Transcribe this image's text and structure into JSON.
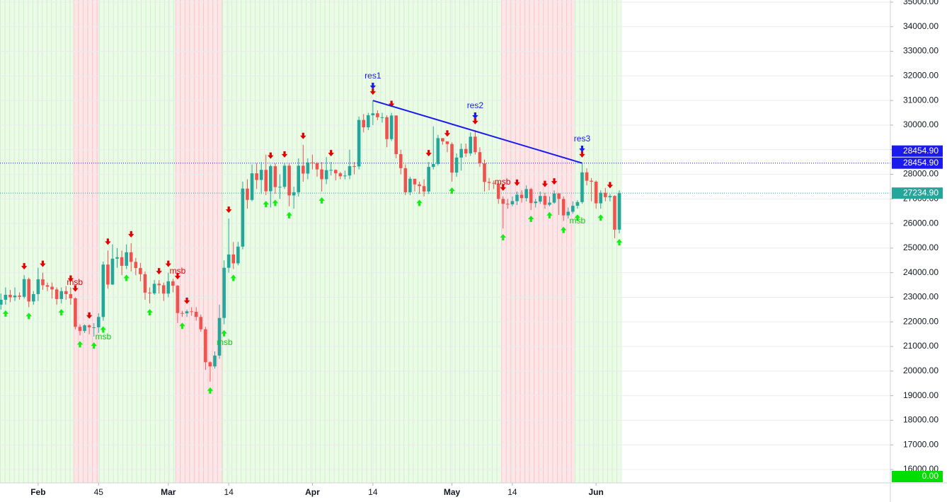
{
  "chart_data": {
    "type": "candlestick",
    "x": [
      24,
      25,
      26,
      27,
      28,
      29,
      30,
      31,
      32,
      33,
      34,
      35,
      36,
      37,
      38,
      39,
      40,
      41,
      42,
      43,
      44,
      45,
      46,
      47,
      48,
      49,
      50,
      51,
      52,
      53,
      54,
      55,
      56,
      57,
      58,
      59,
      60,
      61,
      62,
      63,
      64,
      65,
      66,
      67,
      68,
      69,
      70,
      71,
      72,
      73,
      74,
      75,
      76,
      77,
      78,
      79,
      80,
      81,
      82,
      83,
      84,
      85,
      86,
      87,
      88,
      89,
      90,
      91,
      92,
      93,
      94,
      95,
      96,
      97,
      98,
      99,
      100,
      101,
      102,
      103,
      104,
      105,
      106,
      107,
      108,
      109,
      110,
      111,
      112,
      113,
      114,
      115,
      116,
      117,
      118,
      119,
      120,
      121,
      122,
      123,
      124,
      125,
      126,
      127,
      128,
      129,
      130,
      131,
      132,
      133,
      134,
      135,
      136,
      137,
      138,
      139,
      140,
      141,
      142,
      143,
      144,
      145,
      146,
      147,
      148,
      149,
      150,
      151,
      152,
      153,
      154,
      155,
      156,
      157
    ],
    "open": [
      22700,
      22900,
      23100,
      23000,
      23070,
      23020,
      23740,
      22830,
      23130,
      23730,
      23490,
      23430,
      23320,
      22930,
      23250,
      23130,
      22960,
      21800,
      21630,
      21860,
      21780,
      21780,
      22200,
      24330,
      23520,
      24570,
      24630,
      24280,
      24830,
      24440,
      24190,
      23940,
      23190,
      23160,
      23550,
      23490,
      23150,
      23650,
      23470,
      22360,
      22350,
      22430,
      22410,
      22200,
      21700,
      20360,
      20190,
      20630,
      22160,
      24200,
      24740,
      24380,
      25060,
      27420,
      26960,
      28040,
      27770,
      28180,
      27310,
      28330,
      27480,
      27490,
      28350,
      27140,
      27270,
      28350,
      28030,
      28480,
      28450,
      28200,
      27800,
      28170,
      28180,
      28040,
      27920,
      27950,
      28330,
      28320,
      30210,
      29910,
      30400,
      30480,
      30320,
      30320,
      29430,
      30390,
      28820,
      28250,
      27270,
      27820,
      27590,
      27520,
      27300,
      28300,
      28420,
      29470,
      29340,
      29230,
      28070,
      28680,
      29030,
      28850,
      29530,
      28900,
      28450,
      27690,
      27650,
      27620,
      27000,
      26800,
      26780,
      26910,
      27170,
      27030,
      27400,
      26830,
      26890,
      27120,
      26760,
      26850,
      27220,
      27000,
      26330,
      26480,
      26720,
      26870,
      28080,
      27740,
      27700,
      26820,
      27250,
      27070,
      27120,
      25750
    ],
    "high": [
      23150,
      23400,
      23300,
      23400,
      23200,
      23900,
      23800,
      23250,
      24200,
      24000,
      23600,
      23600,
      23400,
      23400,
      23450,
      23400,
      23000,
      21900,
      21900,
      21900,
      21950,
      22350,
      24450,
      24900,
      25150,
      25000,
      24900,
      25150,
      25200,
      24600,
      24400,
      24050,
      23400,
      23700,
      23700,
      23600,
      24000,
      23750,
      23500,
      22450,
      22500,
      22600,
      22600,
      22300,
      21800,
      20400,
      20800,
      22700,
      24500,
      26200,
      25250,
      25250,
      27700,
      27800,
      28400,
      28450,
      28500,
      28800,
      28400,
      28450,
      28000,
      28450,
      28450,
      27500,
      28650,
      29200,
      28650,
      28800,
      28500,
      28500,
      28700,
      28500,
      28200,
      28100,
      28150,
      29000,
      28500,
      30350,
      30450,
      30500,
      31000,
      30600,
      30500,
      30400,
      30500,
      30400,
      29000,
      28400,
      27900,
      27800,
      27700,
      27800,
      28500,
      29950,
      29600,
      29450,
      29300,
      29300,
      28850,
      29250,
      29250,
      29700,
      29800,
      29100,
      28600,
      27850,
      27750,
      27700,
      27100,
      27000,
      27100,
      27300,
      27350,
      27550,
      27450,
      27000,
      27300,
      27250,
      27100,
      27350,
      27250,
      27100,
      26650,
      26900,
      26950,
      28450,
      28250,
      27850,
      27750,
      27350,
      27450,
      27200,
      27150,
      27350
    ],
    "low": [
      22500,
      22700,
      22800,
      22850,
      22900,
      22950,
      22600,
      22700,
      22850,
      23300,
      23250,
      22950,
      22700,
      22750,
      22900,
      22700,
      21700,
      21450,
      21550,
      21500,
      21400,
      21550,
      22050,
      23350,
      23500,
      24200,
      23900,
      24150,
      24050,
      23900,
      23650,
      22900,
      22750,
      23100,
      23150,
      22850,
      23000,
      23200,
      21950,
      22200,
      22200,
      22250,
      22050,
      21600,
      20050,
      19570,
      20100,
      20500,
      21900,
      24000,
      24150,
      24300,
      24950,
      26600,
      26900,
      27400,
      27200,
      27150,
      26650,
      27200,
      27000,
      27400,
      26700,
      26600,
      27100,
      27700,
      27800,
      28200,
      27900,
      27300,
      27600,
      27950,
      27750,
      27800,
      27800,
      27800,
      28000,
      28200,
      29700,
      29800,
      30000,
      30200,
      30100,
      29100,
      29350,
      28650,
      28000,
      27150,
      27150,
      27300,
      27200,
      27100,
      27200,
      28200,
      28350,
      29200,
      28900,
      27700,
      27900,
      28150,
      28700,
      28750,
      28800,
      28300,
      27300,
      27350,
      27400,
      26800,
      25800,
      26600,
      26700,
      26750,
      26850,
      26900,
      26550,
      26650,
      26800,
      26600,
      26700,
      26800,
      26350,
      26100,
      26200,
      26400,
      26600,
      26800,
      27550,
      26900,
      26600,
      26600,
      26900,
      26900,
      25400,
      25600
    ],
    "close": [
      22900,
      23100,
      23000,
      23070,
      23020,
      23740,
      22830,
      23130,
      23730,
      23490,
      23430,
      23320,
      22930,
      23250,
      23130,
      22960,
      21800,
      21630,
      21860,
      21780,
      21780,
      22200,
      24330,
      23520,
      24570,
      24630,
      24280,
      24830,
      24440,
      24190,
      23940,
      23190,
      23160,
      23550,
      23490,
      23150,
      23650,
      23470,
      22360,
      22350,
      22430,
      22410,
      22200,
      21700,
      20360,
      20190,
      20630,
      22160,
      24200,
      24740,
      24380,
      25060,
      27420,
      26960,
      28040,
      27770,
      28180,
      27310,
      28330,
      27480,
      27490,
      28350,
      27140,
      27270,
      28350,
      28030,
      28480,
      28450,
      28200,
      27800,
      28170,
      28180,
      28040,
      27920,
      27950,
      28330,
      28320,
      30210,
      29910,
      30400,
      30480,
      30320,
      30320,
      29430,
      30390,
      28820,
      28250,
      27270,
      27820,
      27590,
      27520,
      27300,
      28300,
      28420,
      29470,
      29340,
      29230,
      28070,
      28680,
      29030,
      28850,
      29530,
      28900,
      28450,
      27690,
      27650,
      27620,
      27000,
      26800,
      26780,
      26910,
      27170,
      27030,
      27400,
      26830,
      26890,
      27120,
      26760,
      26850,
      27220,
      27000,
      26330,
      26480,
      26720,
      26870,
      28080,
      27740,
      27700,
      26820,
      27250,
      27070,
      27120,
      25750,
      27234.9
    ],
    "up_color": "#26a69a",
    "down_color": "#ef5350",
    "xlim": [
      23.8,
      215.3
    ],
    "xticks": [
      {
        "value": 32,
        "label": "Feb"
      },
      45,
      {
        "value": 60,
        "label": "Mar"
      },
      {
        "value": 73,
        "label": "14"
      },
      {
        "value": 91,
        "label": "Apr"
      },
      {
        "value": 104,
        "label": "14"
      },
      {
        "value": 121,
        "label": "May"
      },
      {
        "value": 134,
        "label": "14"
      },
      {
        "value": 152,
        "label": "Jun"
      }
    ],
    "ylim": [
      15454,
      35086
    ],
    "yticks": [
      {
        "value": 16000,
        "label": "16000.00"
      },
      {
        "value": 17000,
        "label": "17000.00"
      },
      {
        "value": 18000,
        "label": "18000.00"
      },
      {
        "value": 19000,
        "label": "19000.00"
      },
      {
        "value": 20000,
        "label": "20000.00"
      },
      {
        "value": 21000,
        "label": "21000.00"
      },
      {
        "value": 22000,
        "label": "22000.00"
      },
      {
        "value": 23000,
        "label": "23000.00"
      },
      {
        "value": 24000,
        "label": "24000.00"
      },
      {
        "value": 25000,
        "label": "25000.00"
      },
      {
        "value": 26000,
        "label": "26000.00"
      },
      {
        "value": 27000,
        "label": "27000.00"
      },
      {
        "value": 28000,
        "label": "28000.00"
      },
      {
        "value": 29000,
        "label": "29000.00"
      },
      {
        "value": 30000,
        "label": "30000.00"
      },
      {
        "value": 31000,
        "label": "31000.00"
      },
      {
        "value": 32000,
        "label": "32000.00"
      },
      {
        "value": 33000,
        "label": "33000.00"
      },
      {
        "value": 34000,
        "label": "34000.00"
      },
      {
        "value": 35000,
        "label": "35000.00"
      }
    ],
    "grid": true,
    "zones": [
      {
        "x": [
          23.8,
          39.6
        ],
        "fill": "#ebfbe8",
        "stripe": "#cdf3c6"
      },
      {
        "x": [
          39.6,
          45.1
        ],
        "fill": "#fde6e8",
        "stripe": "#f8c6ca"
      },
      {
        "x": [
          45.1,
          61.5
        ],
        "fill": "#ebfbe8",
        "stripe": "#cdf3c6"
      },
      {
        "x": [
          61.5,
          71.6
        ],
        "fill": "#fde6e8",
        "stripe": "#f8c6ca"
      },
      {
        "x": [
          71.6,
          131.6
        ],
        "fill": "#ebfbe8",
        "stripe": "#cdf3c6"
      },
      {
        "x": [
          131.6,
          147.4
        ],
        "fill": "#fde6e8",
        "stripe": "#f8c6ca"
      },
      {
        "x": [
          147.4,
          157.5
        ],
        "fill": "#ebfbe8",
        "stripe": "#cdf3c6"
      }
    ],
    "down_arrows": [
      29,
      33,
      39,
      40,
      43,
      47,
      52,
      58,
      60,
      62,
      64,
      73,
      82,
      85,
      89,
      95,
      104,
      108,
      116,
      120,
      126,
      132,
      135,
      141,
      143,
      149,
      155
    ],
    "down_arrow_color": "#e00000",
    "up_arrows": [
      25,
      30,
      37,
      41,
      44,
      46,
      51,
      56,
      63,
      69,
      72,
      74,
      81,
      83,
      86,
      93,
      114,
      121,
      132,
      138,
      142,
      145,
      148,
      153,
      157
    ],
    "up_arrow_color": "#11ee11",
    "annotations": [
      {
        "text": "msb",
        "x": 39.9,
        "y": 23590,
        "color": "#e00000"
      },
      {
        "text": "msb",
        "x": 62,
        "y": 24050,
        "color": "#e00000"
      },
      {
        "text": "msb",
        "x": 131.9,
        "y": 27670,
        "color": "#e00000"
      },
      {
        "text": "msb",
        "x": 46,
        "y": 21377,
        "color": "#11cc11"
      },
      {
        "text": "msb",
        "x": 72.1,
        "y": 21147,
        "color": "#11cc11"
      },
      {
        "text": "msb",
        "x": 148,
        "y": 26090,
        "color": "#11cc11"
      },
      {
        "text": "res1",
        "x": 104,
        "y": 31982,
        "color": "#1a1aee",
        "arrow": true
      },
      {
        "text": "res2",
        "x": 126,
        "y": 30775,
        "color": "#1a1aee",
        "arrow": true
      },
      {
        "text": "res3",
        "x": 149,
        "y": 29425,
        "color": "#1a1aee",
        "arrow": true
      }
    ],
    "trendline": {
      "x": [
        104,
        149
      ],
      "y": [
        31000,
        28454.9
      ],
      "color": "#1a1aee"
    },
    "price_lines": [
      {
        "value": 28454.9,
        "color": "#1a1aee"
      },
      {
        "value": 27234.9,
        "color": "#26a69a"
      }
    ],
    "price_tags": [
      {
        "value": 28454.9,
        "label": "28454.90",
        "color": "#1a1aee"
      },
      {
        "value": 28454.9,
        "label": "28454.90",
        "color": "#1a1aee"
      },
      {
        "value": 27234.9,
        "label": "27234.90",
        "color": "#26a69a"
      },
      {
        "value": 0,
        "label": "0.00",
        "color": "#00dd00"
      }
    ]
  }
}
